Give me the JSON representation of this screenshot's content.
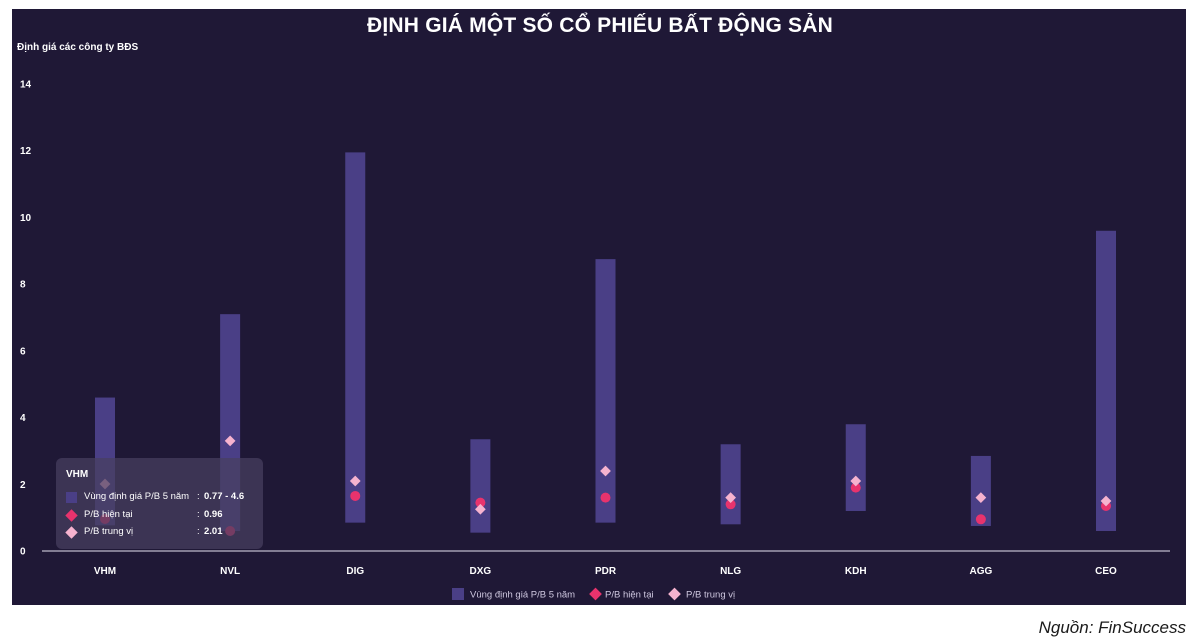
{
  "title": "ĐỊNH GIÁ MỘT SỐ CỔ PHIẾU BẤT ĐỘNG SẢN",
  "source": "Nguồn: FinSuccess",
  "colors": {
    "background": "#1f1836",
    "band": "#4a3f86",
    "current": "#e8336d",
    "median": "#f6b3cf"
  },
  "tooltip": {
    "title": "VHM",
    "rows": [
      {
        "label": "Vùng định giá P/B 5 năm",
        "sep": ":",
        "value": "0.77 - 4.6"
      },
      {
        "label": "P/B hiện tại",
        "sep": ":",
        "value": "0.96"
      },
      {
        "label": "P/B trung vị",
        "sep": ":",
        "value": "2.01"
      }
    ]
  },
  "chart_data": {
    "type": "range-bar-with-markers",
    "title": "ĐỊNH GIÁ MỘT SỐ CỔ PHIẾU BẤT ĐỘNG SẢN",
    "ylabel": "Định giá các công ty BĐS",
    "ylim": [
      0,
      14
    ],
    "yticks": [
      0,
      2,
      4,
      6,
      8,
      10,
      12,
      14
    ],
    "grid": false,
    "legend_position": "bottom-center",
    "categories": [
      "VHM",
      "NVL",
      "DIG",
      "DXG",
      "PDR",
      "NLG",
      "KDH",
      "AGG",
      "CEO"
    ],
    "series": [
      {
        "name": "Vùng định giá P/B 5 năm",
        "kind": "range",
        "low": [
          0.77,
          0.6,
          0.85,
          0.55,
          0.85,
          0.8,
          1.2,
          0.75,
          0.6
        ],
        "high": [
          4.6,
          7.1,
          11.95,
          3.35,
          8.75,
          3.2,
          3.8,
          2.85,
          9.6
        ]
      },
      {
        "name": "P/B hiện tại",
        "kind": "point",
        "values": [
          0.96,
          0.6,
          1.65,
          1.45,
          1.6,
          1.4,
          1.9,
          0.95,
          1.35
        ]
      },
      {
        "name": "P/B trung vị",
        "kind": "diamond",
        "values": [
          2.01,
          3.3,
          2.1,
          1.25,
          2.4,
          1.6,
          2.1,
          1.6,
          1.5
        ]
      }
    ]
  }
}
